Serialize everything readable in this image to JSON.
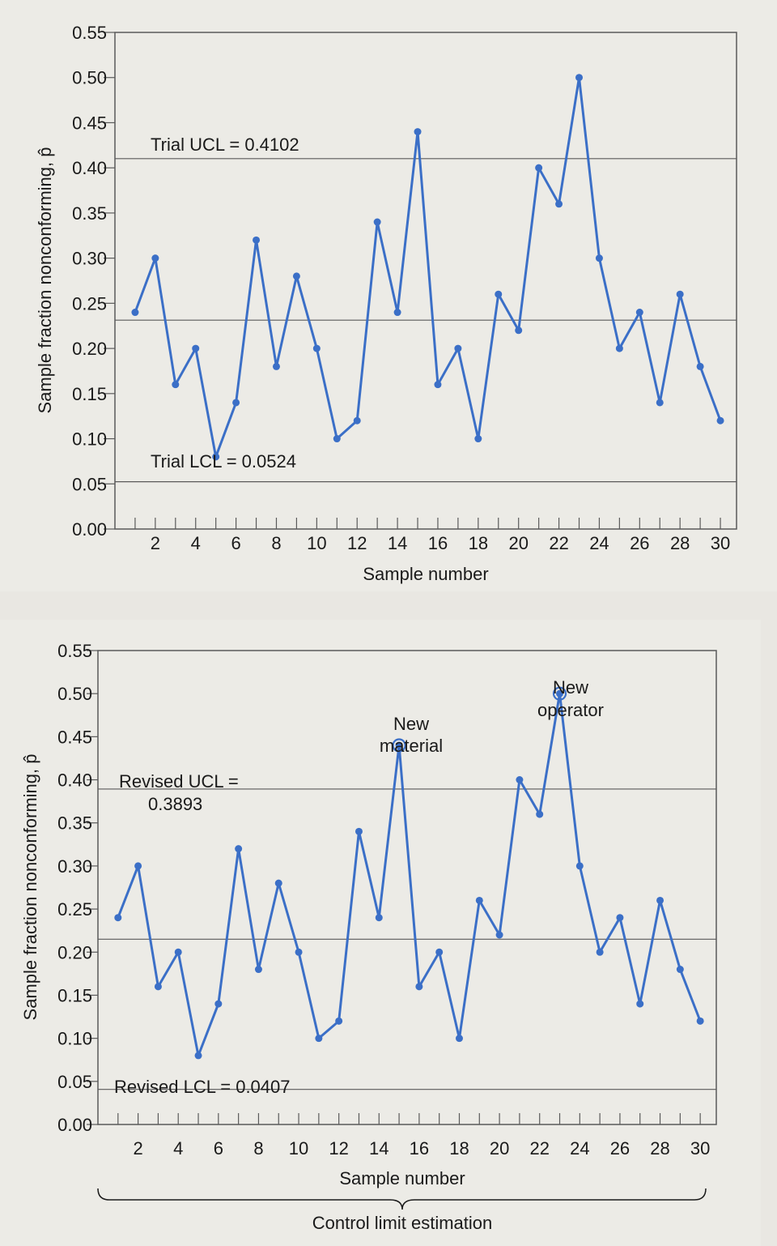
{
  "colors": {
    "series": "#3b6fc7",
    "line": "#5a5a5a",
    "text": "#1a1a1a",
    "background": "#ecebe6"
  },
  "chart_data": [
    {
      "type": "line",
      "xlabel": "Sample number",
      "ylabel": "Sample fraction nonconforming, p̂",
      "xlim": [
        0,
        30.8
      ],
      "ylim": [
        0,
        0.55
      ],
      "x_ticks": [
        2,
        4,
        6,
        8,
        10,
        12,
        14,
        16,
        18,
        20,
        22,
        24,
        26,
        28,
        30
      ],
      "y_ticks": [
        "0.00",
        "0.05",
        "0.10",
        "0.15",
        "0.20",
        "0.25",
        "0.30",
        "0.35",
        "0.40",
        "0.45",
        "0.50",
        "0.55"
      ],
      "grid": false,
      "x": [
        1,
        2,
        3,
        4,
        5,
        6,
        7,
        8,
        9,
        10,
        11,
        12,
        13,
        14,
        15,
        16,
        17,
        18,
        19,
        20,
        21,
        22,
        23,
        24,
        25,
        26,
        27,
        28,
        29,
        30
      ],
      "values": [
        0.24,
        0.3,
        0.16,
        0.2,
        0.08,
        0.14,
        0.32,
        0.18,
        0.28,
        0.2,
        0.1,
        0.12,
        0.34,
        0.24,
        0.44,
        0.16,
        0.2,
        0.1,
        0.26,
        0.22,
        0.4,
        0.36,
        0.5,
        0.3,
        0.2,
        0.24,
        0.14,
        0.26,
        0.18,
        0.12
      ],
      "reference_lines": [
        {
          "label": "Trial UCL = 0.4102",
          "value": 0.4102
        },
        {
          "value": 0.2313
        },
        {
          "label": "Trial LCL = 0.0524",
          "value": 0.0524
        }
      ]
    },
    {
      "type": "line",
      "xlabel": "Sample number",
      "ylabel": "Sample fraction nonconforming, p̂",
      "xlim": [
        0,
        30.8
      ],
      "ylim": [
        0,
        0.55
      ],
      "x_ticks": [
        2,
        4,
        6,
        8,
        10,
        12,
        14,
        16,
        18,
        20,
        22,
        24,
        26,
        28,
        30
      ],
      "y_ticks": [
        "0.00",
        "0.05",
        "0.10",
        "0.15",
        "0.20",
        "0.25",
        "0.30",
        "0.35",
        "0.40",
        "0.45",
        "0.50",
        "0.55"
      ],
      "grid": false,
      "x": [
        1,
        2,
        3,
        4,
        5,
        6,
        7,
        8,
        9,
        10,
        11,
        12,
        13,
        14,
        15,
        16,
        17,
        18,
        19,
        20,
        21,
        22,
        23,
        24,
        25,
        26,
        27,
        28,
        29,
        30
      ],
      "values": [
        0.24,
        0.3,
        0.16,
        0.2,
        0.08,
        0.14,
        0.32,
        0.18,
        0.28,
        0.2,
        0.1,
        0.12,
        0.34,
        0.24,
        0.44,
        0.16,
        0.2,
        0.1,
        0.26,
        0.22,
        0.4,
        0.36,
        0.5,
        0.3,
        0.2,
        0.24,
        0.14,
        0.26,
        0.18,
        0.12
      ],
      "reference_lines": [
        {
          "label_lines": [
            "Revised UCL =",
            "0.3893"
          ],
          "value": 0.3893
        },
        {
          "value": 0.215
        },
        {
          "label": "Revised LCL = 0.0407",
          "value": 0.0407
        }
      ],
      "annotations": [
        {
          "text_lines": [
            "New",
            "material"
          ],
          "x": 15,
          "y": 0.44,
          "circled": true
        },
        {
          "text_lines": [
            "New",
            "operator"
          ],
          "x": 23,
          "y": 0.5,
          "circled": true
        }
      ],
      "bracket_label": "Control limit estimation"
    }
  ]
}
